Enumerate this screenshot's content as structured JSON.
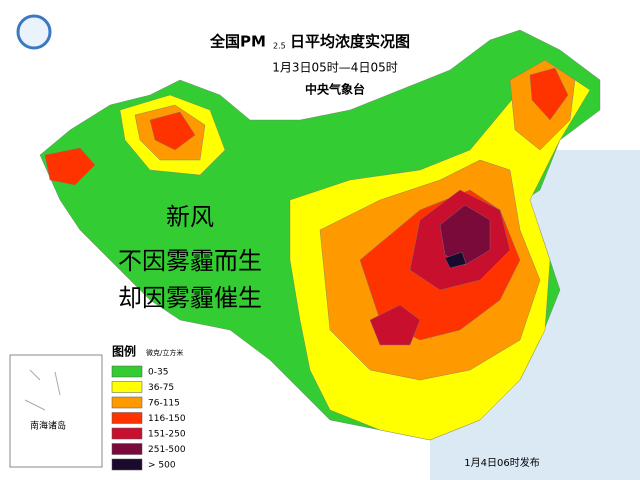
{
  "header": {
    "title_main": "全国PM",
    "title_sub": "2.5",
    "title_rest": "日平均浓度实况图",
    "period": "1月3日05时—4日05时",
    "issuer": "中央气象台"
  },
  "overlay": {
    "line1": "新风",
    "line2": "不因雾霾而生",
    "line3": "却因雾霾催生"
  },
  "legend": {
    "title": "图例",
    "unit": "微克/立方米",
    "items": [
      {
        "label": "0-35",
        "color": "#33cc33"
      },
      {
        "label": "36-75",
        "color": "#ffff00"
      },
      {
        "label": "76-115",
        "color": "#ff9900"
      },
      {
        "label": "116-150",
        "color": "#ff3300"
      },
      {
        "label": "151-250",
        "color": "#c8102e"
      },
      {
        "label": "251-500",
        "color": "#7a0a3a"
      },
      {
        "label": "> 500",
        "color": "#1a0a2e"
      }
    ]
  },
  "inset": {
    "label": "南海诸岛"
  },
  "footer": {
    "release": "1月4日06时发布"
  }
}
